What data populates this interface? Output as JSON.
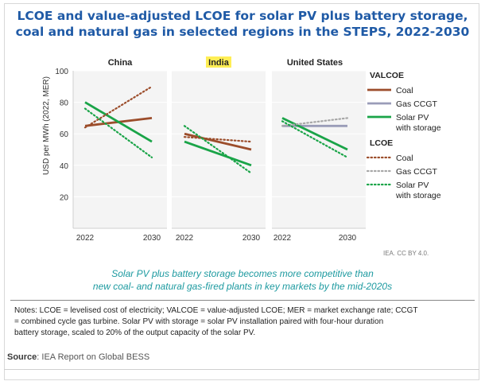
{
  "title": {
    "line1": "LCOE and value-adjusted LCOE for solar PV plus battery storage,",
    "line2": "coal and natural gas in selected regions in the STEPS, 2022-2030"
  },
  "chart_data": {
    "type": "line",
    "ylabel": "USD per MWh (2022, MER)",
    "ylim": [
      0,
      100
    ],
    "yticks": [
      20,
      40,
      60,
      80,
      100
    ],
    "x": [
      "2022",
      "2030"
    ],
    "colors": {
      "coal": "#9c4d2b",
      "gas": "#9a9cb8",
      "gas_dotted": "#a7a7a7",
      "solar": "#1aa448",
      "india_highlight": "#ffee55"
    },
    "panels": [
      {
        "name": "China",
        "series": [
          {
            "name": "VALCOE Coal",
            "values": [
              65,
              70
            ]
          },
          {
            "name": "VALCOE Solar PV with storage",
            "values": [
              80,
              55
            ]
          },
          {
            "name": "LCOE Coal",
            "values": [
              64,
              90
            ]
          },
          {
            "name": "LCOE Solar PV with storage",
            "values": [
              76,
              45
            ]
          }
        ]
      },
      {
        "name": "India",
        "series": [
          {
            "name": "VALCOE Coal",
            "values": [
              60,
              50
            ]
          },
          {
            "name": "VALCOE Solar PV with storage",
            "values": [
              55,
              40
            ]
          },
          {
            "name": "LCOE Coal",
            "values": [
              58,
              55
            ]
          },
          {
            "name": "LCOE Solar PV with storage",
            "values": [
              65,
              35
            ]
          }
        ]
      },
      {
        "name": "United States",
        "series": [
          {
            "name": "VALCOE Gas CCGT",
            "values": [
              65,
              65
            ]
          },
          {
            "name": "VALCOE Solar PV with storage",
            "values": [
              70,
              50
            ]
          },
          {
            "name": "LCOE Gas CCGT",
            "values": [
              65,
              70
            ]
          },
          {
            "name": "LCOE Solar PV with storage",
            "values": [
              68,
              45
            ]
          }
        ]
      }
    ],
    "legend": {
      "valcoe_title": "VALCOE",
      "lcoe_title": "LCOE",
      "coal": "Coal",
      "gas": "Gas CCGT",
      "solar_line1": "Solar PV",
      "solar_line2": "with storage"
    }
  },
  "credit": "IEA. CC BY 4.0.",
  "caption": {
    "line1": "Solar PV plus battery storage becomes more competitive than",
    "line2": "new coal- and natural gas-fired plants in key markets by the mid-2020s"
  },
  "notes": {
    "line1": "Notes: LCOE = levelised cost of electricity; VALCOE = value-adjusted LCOE; MER = market exchange rate; CCGT",
    "line2": "= combined cycle gas turbine. Solar PV with storage = solar PV installation paired with four-hour duration",
    "line3": "battery storage, scaled to 20% of the output capacity of the solar PV."
  },
  "source": {
    "label": "Source",
    "text": ": IEA Report on Global BESS"
  }
}
